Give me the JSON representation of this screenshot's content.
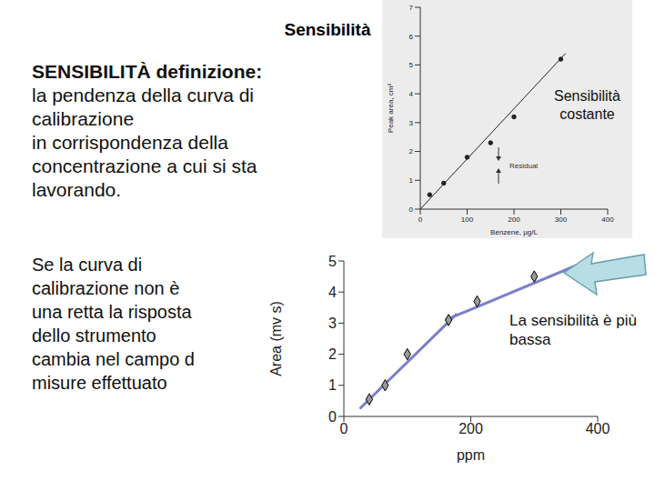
{
  "slide": {
    "title": "Sensibilità",
    "definition_heading": "SENSIBILITÀ definizione:",
    "definition_lines": [
      "la pendenza della curva di",
      "calibrazione",
      "in corrispondenza della",
      "concentrazione a cui si sta",
      "lavorando."
    ],
    "note_lines": [
      "Se la curva di",
      "calibrazione non è",
      "una retta la risposta",
      "dello strumento",
      "cambia nel campo d",
      "misure effettuato"
    ]
  },
  "chart_data": [
    {
      "type": "scatter",
      "x_label": "Benzene, µg/L",
      "y_label": "Peak area, cm²",
      "annotations": [
        "Residual",
        "Sensibilità costante"
      ],
      "xlim": [
        0,
        400
      ],
      "ylim": [
        0,
        7
      ],
      "xticks": [
        0,
        100,
        200,
        300,
        400
      ],
      "yticks": [
        0,
        1,
        2,
        3,
        4,
        5,
        6,
        7
      ],
      "grid": false,
      "series": [
        {
          "type": "scatter",
          "marker": "circle",
          "color": "#222222",
          "x": [
            20,
            50,
            100,
            150,
            200,
            300
          ],
          "values": [
            0.5,
            0.9,
            1.8,
            2.3,
            3.2,
            5.2
          ]
        },
        {
          "type": "line",
          "color": "#222222",
          "x": [
            0,
            310
          ],
          "values": [
            0,
            5.4
          ]
        }
      ]
    },
    {
      "type": "scatter",
      "x_label": "ppm",
      "y_label": "Area (mv s)",
      "annotations": [
        "La sensibilità è più bassa"
      ],
      "xlim": [
        0,
        400
      ],
      "ylim": [
        0,
        5
      ],
      "xticks": [
        0,
        200,
        400
      ],
      "yticks": [
        0,
        1,
        2,
        3,
        4,
        5
      ],
      "grid": false,
      "series": [
        {
          "type": "scatter",
          "marker": "diamond",
          "color": "#000000",
          "x": [
            40,
            65,
            100,
            165,
            210,
            300
          ],
          "values": [
            0.55,
            1.0,
            2.0,
            3.1,
            3.7,
            4.5
          ]
        },
        {
          "type": "line",
          "color": "#7b7fc8",
          "x": [
            25,
            178
          ],
          "values": [
            0.25,
            3.3
          ]
        },
        {
          "type": "line",
          "color": "#7b7fc8",
          "x": [
            160,
            383
          ],
          "values": [
            3.1,
            5.0
          ]
        }
      ]
    }
  ]
}
